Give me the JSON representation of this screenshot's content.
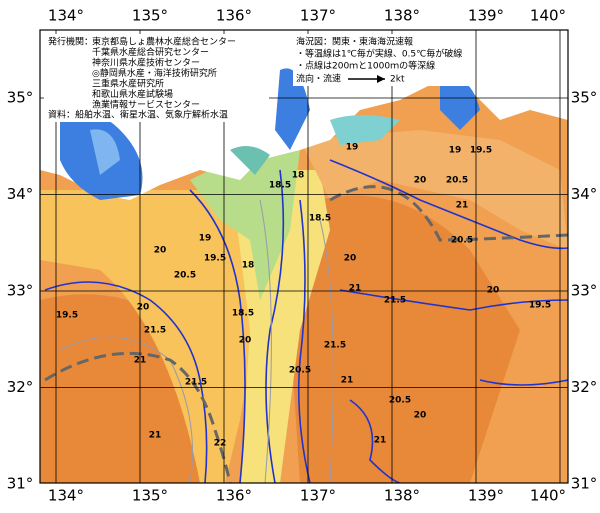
{
  "map": {
    "lon_labels": [
      "134°",
      "135°",
      "136°",
      "137°",
      "138°",
      "139°",
      "140°"
    ],
    "lat_labels": [
      "35°",
      "34°",
      "33°",
      "32°",
      "31°"
    ],
    "publisher": {
      "label": "発行機関：",
      "orgs": [
        "東京都島しょ農林水産総合センター",
        "千葉県水産総合研究センター",
        "神奈川県水産技術センター",
        "◎静岡県水産・海洋技術研究所",
        "三重県水産研究所",
        "和歌山県水産試験場",
        "漁業情報サービスセンター"
      ]
    },
    "source": "資料：船舶水温、衛星水温、気象庁解析水温",
    "info": [
      "海況図：関東・東海海況速報",
      "・等温線は1℃毎が実線、0.5℃毎が破線",
      "・点線は200ｍと1000ｍの等深線"
    ],
    "legend": {
      "label": "流向・流速",
      "speed": "2kt"
    },
    "contour_labels": [
      19,
      18.5,
      18,
      19,
      19.5,
      20,
      20.5,
      21,
      20.5,
      18.5,
      19,
      19.5,
      20,
      20.5,
      18,
      18.5,
      20,
      19.5,
      21.5,
      21,
      21.5,
      20,
      20.5,
      21,
      21.5,
      20,
      21,
      19.5,
      20,
      20.5,
      21,
      21,
      22,
      20,
      21.5
    ]
  }
}
